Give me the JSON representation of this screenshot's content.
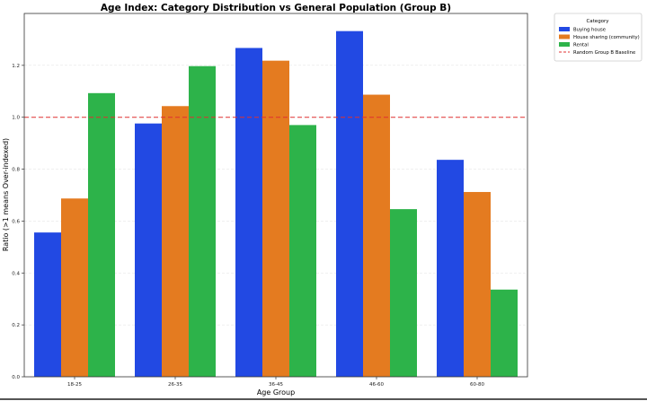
{
  "chart_data": {
    "type": "bar",
    "title": "Age Index: Category Distribution vs General Population (Group B)",
    "xlabel": "Age Group",
    "ylabel": "Ratio (>1 means Over-indexed)",
    "categories": [
      "18-25",
      "26-35",
      "36-45",
      "46-60",
      "60-80"
    ],
    "series": [
      {
        "name": "Buying house",
        "color": "#2249e3",
        "values": [
          0.556,
          0.976,
          1.267,
          1.332,
          0.836
        ]
      },
      {
        "name": "House sharing (community)",
        "color": "#e47b20",
        "values": [
          0.687,
          1.043,
          1.218,
          1.087,
          0.712
        ]
      },
      {
        "name": "Rental",
        "color": "#2db34a",
        "values": [
          1.093,
          1.197,
          0.97,
          0.646,
          0.336
        ]
      }
    ],
    "baseline": {
      "name": "Random Group B Baseline",
      "value": 1.0,
      "color": "#e03030",
      "style": "dashed"
    },
    "ylim": [
      0,
      1.4
    ],
    "yticks": [
      "0.0",
      "0.2",
      "0.4",
      "0.6",
      "0.8",
      "1.0",
      "1.2"
    ],
    "grid": "horizontal-faint",
    "legend": {
      "title": "Category",
      "placement": "outside-top-right"
    }
  }
}
